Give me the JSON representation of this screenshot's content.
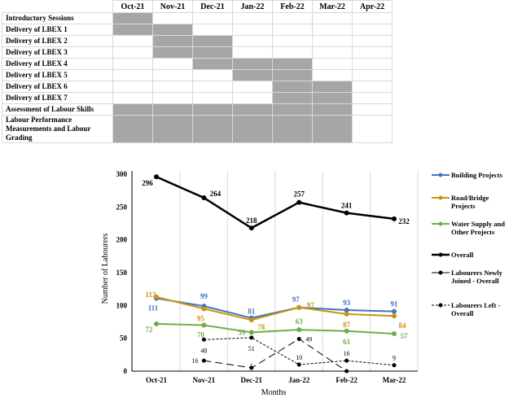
{
  "schedule": {
    "months": [
      "Oct-21",
      "Nov-21",
      "Dec-21",
      "Jan-22",
      "Feb-22",
      "Mar-22",
      "Apr-22"
    ],
    "rows": [
      {
        "label": "Introductory Sessions",
        "active": [
          1,
          0,
          0,
          0,
          0,
          0,
          0
        ]
      },
      {
        "label": "Delivery of LBEX 1",
        "active": [
          1,
          1,
          0,
          0,
          0,
          0,
          0
        ]
      },
      {
        "label": "Delivery of LBEX 2",
        "active": [
          0,
          1,
          1,
          0,
          0,
          0,
          0
        ]
      },
      {
        "label": "Delivery of LBEX 3",
        "active": [
          0,
          1,
          1,
          0,
          0,
          0,
          0
        ]
      },
      {
        "label": "Delivery of LBEX 4",
        "active": [
          0,
          0,
          1,
          1,
          1,
          0,
          0
        ]
      },
      {
        "label": "Delivery of LBEX 5",
        "active": [
          0,
          0,
          0,
          1,
          1,
          0,
          0
        ]
      },
      {
        "label": "Delivery of LBEX 6",
        "active": [
          0,
          0,
          0,
          0,
          1,
          1,
          0
        ]
      },
      {
        "label": "Delivery of LBEX 7",
        "active": [
          0,
          0,
          0,
          0,
          1,
          1,
          0
        ]
      },
      {
        "label": "Assessment of Labour Skills",
        "active": [
          1,
          1,
          1,
          1,
          1,
          1,
          0
        ]
      },
      {
        "label": "Labour Performance Measurements and Labour Grading",
        "active": [
          1,
          1,
          1,
          1,
          1,
          1,
          0
        ]
      }
    ],
    "fill_color": "#a6a6a6"
  },
  "chart_data": {
    "type": "line",
    "categories": [
      "Oct-21",
      "Nov-21",
      "Dec-21",
      "Jan-22",
      "Feb-22",
      "Mar-22"
    ],
    "xlabel": "Months",
    "ylabel": "Number of Labourers",
    "ylim": [
      0,
      300
    ],
    "yticks": [
      0,
      50,
      100,
      150,
      200,
      250,
      300
    ],
    "grid": "vertical",
    "legend": "right",
    "series": [
      {
        "name": "Building Projects",
        "color": "#4472c4",
        "style": "solid",
        "values": [
          111,
          99,
          81,
          97,
          93,
          91
        ]
      },
      {
        "name": "Road/Bridge Projects",
        "color": "#c8960c",
        "style": "solid",
        "values": [
          113,
          95,
          78,
          97,
          87,
          84
        ]
      },
      {
        "name": "Water Supply and Other Projects",
        "color": "#70ad47",
        "style": "solid",
        "values": [
          72,
          70,
          59,
          63,
          61,
          57
        ]
      },
      {
        "name": "Overall",
        "color": "#000000",
        "style": "bold",
        "values": [
          296,
          264,
          218,
          257,
          241,
          232
        ]
      },
      {
        "name": "Labourers Newly Joined - Overall",
        "color": "#000000",
        "style": "longdash",
        "values": [
          null,
          16,
          5,
          49,
          0,
          null
        ],
        "labels": [
          null,
          "16",
          "5",
          "49",
          null,
          null
        ]
      },
      {
        "name": "Labourers Left - Overall",
        "color": "#000000",
        "style": "shortdash",
        "values": [
          null,
          48,
          51,
          10,
          16,
          9
        ]
      }
    ]
  }
}
